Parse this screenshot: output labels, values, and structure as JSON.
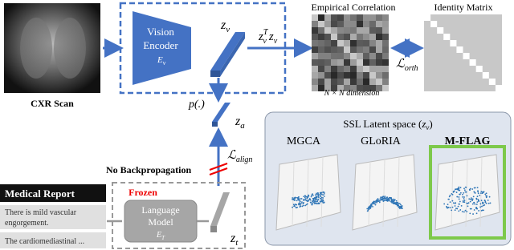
{
  "scan_label": "CXR Scan",
  "vision_encoder": {
    "lines": [
      "Vision",
      "Encoder"
    ],
    "symbol": {
      "base": "E",
      "sub": "v"
    }
  },
  "z_v": {
    "base": "z",
    "sub": "v"
  },
  "product": {
    "base": "z",
    "sup": "T",
    "sub": "v",
    "base2": "z",
    "sub2": "v"
  },
  "empirical_title": "Empirical Correlation",
  "identity_title": "Identity Matrix",
  "dimension": "N × N dimension",
  "loss_orth": {
    "base": "ℒ",
    "sub": "orth"
  },
  "projector": "p(.)",
  "z_a": {
    "base": "z",
    "sub": "a"
  },
  "loss_align": {
    "base": "ℒ",
    "sub": "align"
  },
  "no_backprop": "No Backpropagation",
  "frozen": "Frozen",
  "language_model": {
    "lines": [
      "Language",
      "Model"
    ],
    "symbol": {
      "base": "E",
      "sub": "T"
    }
  },
  "z_t": {
    "base": "z",
    "sub": "t"
  },
  "report": {
    "header": "Medical Report",
    "sentence1": [
      "There is mild vascular",
      "engorgement."
    ],
    "sentence2": "The cardiomediastinal ..."
  },
  "latent": {
    "title": {
      "text": "SSL Latent space (",
      "base": "z",
      "sub": "v",
      "close": ")"
    },
    "methods": [
      "MGCA",
      "GLoRIA",
      "M-FLAG"
    ]
  }
}
